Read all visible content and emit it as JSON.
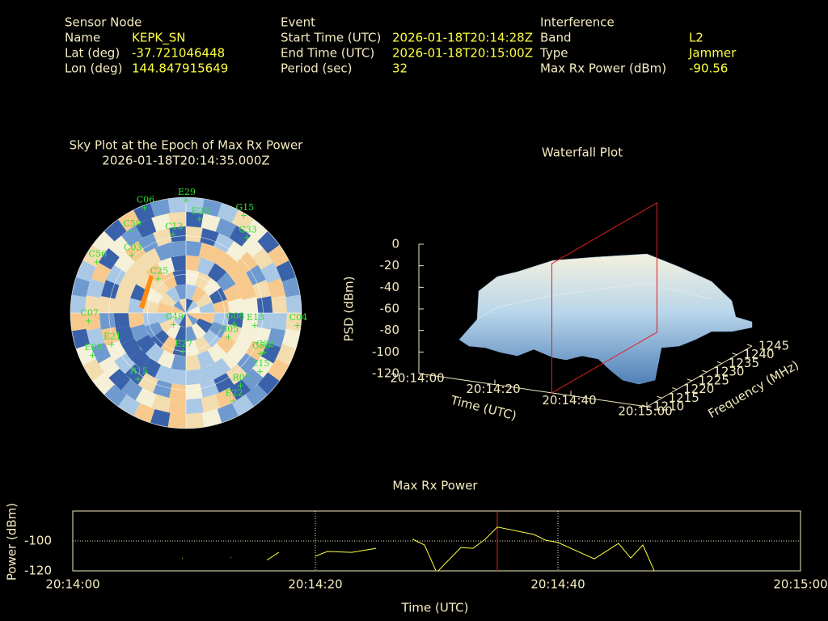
{
  "header": {
    "sensor": {
      "title": "Sensor Node",
      "rows": [
        [
          "Name",
          "KEPK_SN"
        ],
        [
          "Lat (deg)",
          "-37.721046448"
        ],
        [
          "Lon (deg)",
          "144.847915649"
        ]
      ]
    },
    "event": {
      "title": "Event",
      "rows": [
        [
          "Start Time (UTC)",
          "2026-01-18T20:14:28Z"
        ],
        [
          "End Time (UTC)",
          "2026-01-18T20:15:00Z"
        ],
        [
          "Period (sec)",
          "32"
        ]
      ]
    },
    "interference": {
      "title": "Interference",
      "rows": [
        [
          "Band",
          "L2"
        ],
        [
          "Type",
          "Jammer"
        ],
        [
          "Max Rx Power (dBm)",
          "-90.56"
        ]
      ]
    }
  },
  "sky_plot": {
    "title": "Sky Plot at the Epoch of Max Rx Power",
    "subtitle": "2026-01-18T20:14:35.000Z",
    "satellites": [
      {
        "name": "E29",
        "az": 0,
        "el": 0
      },
      {
        "name": "C06",
        "az": 339,
        "el": 0
      },
      {
        "name": "G15",
        "az": 30,
        "el": 0
      },
      {
        "name": "E26",
        "az": 8,
        "el": 14
      },
      {
        "name": "C59",
        "az": 327,
        "el": 12
      },
      {
        "name": "C33",
        "az": 38,
        "el": 13
      },
      {
        "name": "C13",
        "az": 351,
        "el": 26
      },
      {
        "name": "C03",
        "az": 318,
        "el": 27
      },
      {
        "name": "C56",
        "az": 301,
        "el": 9
      },
      {
        "name": "C25",
        "az": 323,
        "el": 54
      },
      {
        "name": "G05",
        "az": 117,
        "el": 53
      },
      {
        "name": "G02",
        "az": 115,
        "el": 23
      },
      {
        "name": "E13",
        "az": 98,
        "el": 36
      },
      {
        "name": "C07",
        "az": 267,
        "el": 14
      },
      {
        "name": "C04",
        "az": 95,
        "el": 3
      },
      {
        "name": "G08",
        "az": 100,
        "el": 52
      },
      {
        "name": "E21",
        "az": 249,
        "el": 28
      },
      {
        "name": "E09",
        "az": 247,
        "el": 11
      },
      {
        "name": "E15",
        "az": 127,
        "el": 18
      },
      {
        "name": "R07",
        "az": 142,
        "el": 21
      },
      {
        "name": "E27",
        "az": 185,
        "el": 62
      },
      {
        "name": "R15",
        "az": 217,
        "el": 28
      },
      {
        "name": "E22",
        "az": 151,
        "el": 14
      },
      {
        "name": "C50",
        "az": 117,
        "el": 25
      },
      {
        "name": "C49",
        "az": 234,
        "el": 78
      }
    ]
  },
  "waterfall": {
    "title": "Waterfall Plot",
    "psd_label": "PSD (dBm)",
    "time_label": "Time (UTC)",
    "freq_label": "Frequency (MHz)",
    "psd_lim": [
      -120,
      0
    ],
    "psd_ticks": [
      0,
      -20,
      -40,
      -60,
      -80,
      -100,
      -120
    ],
    "time_lim": [
      "20:14:00",
      "20:15:00"
    ],
    "time_ticks": [
      "20:14:00",
      "20:14:20",
      "20:14:40",
      "20:15:00"
    ],
    "freq_lim": [
      1210,
      1245
    ],
    "freq_ticks": [
      1210,
      1215,
      1220,
      1225,
      1230,
      1235,
      1240,
      1245
    ],
    "marker": "20:14:35"
  },
  "chart_data": {
    "type": "line",
    "title": "Max Rx Power",
    "xlabel": "Time (UTC)",
    "ylabel": "Power (dBm)",
    "x": [
      "20:14:09",
      "20:14:11",
      "20:14:13",
      "20:14:15",
      "20:14:16",
      "20:14:17",
      "20:14:19",
      "20:14:20",
      "20:14:21",
      "20:14:23",
      "20:14:25",
      "20:14:27",
      "20:14:28",
      "20:14:29",
      "20:14:30",
      "20:14:32",
      "20:14:33",
      "20:14:34",
      "20:14:35",
      "20:14:38",
      "20:14:39",
      "20:14:40",
      "20:14:43",
      "20:14:45",
      "20:14:46",
      "20:14:47",
      "20:14:48"
    ],
    "series": [
      {
        "name": "Max Rx Power",
        "color": "#ffff40",
        "values": [
          -111.5,
          null,
          -111,
          null,
          -112.6,
          -107.6,
          null,
          -110,
          -107,
          -107.6,
          -104.9,
          null,
          -98.9,
          -102.7,
          -121,
          -104.4,
          -104.9,
          -98.9,
          -90.7,
          -95.6,
          -99.5,
          -101,
          -112,
          -101.6,
          -111.4,
          -102.7,
          -121
        ]
      }
    ],
    "xlim": [
      "20:14:00",
      "20:15:00"
    ],
    "xticks": [
      "20:14:00",
      "20:14:20",
      "20:14:40",
      "20:15:00"
    ],
    "ylim": [
      -120,
      -80
    ],
    "yticks": [
      -100,
      -120
    ],
    "grid": true,
    "marker": "20:14:35",
    "marker_color": "#e02020"
  }
}
